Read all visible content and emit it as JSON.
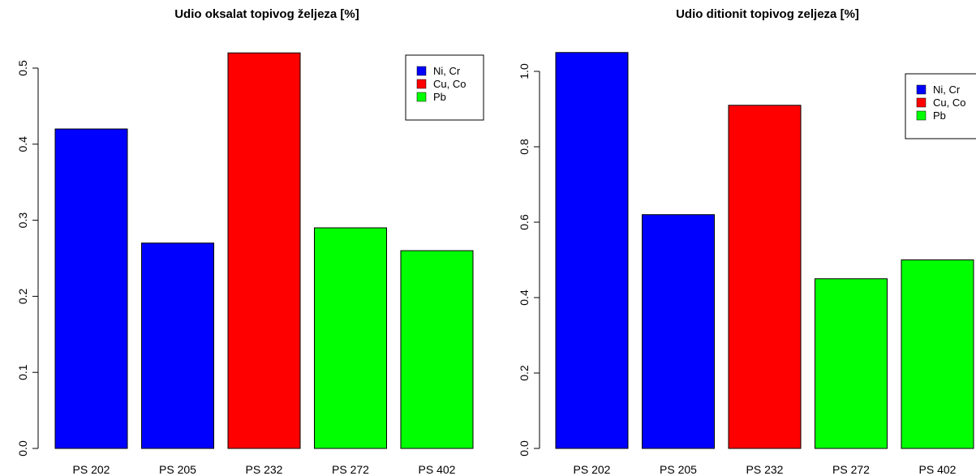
{
  "chart_data": [
    {
      "type": "bar",
      "title": "Udio oksalat topivog željeza [%]",
      "xlabel": "",
      "ylabel": "",
      "categories": [
        "PS 202",
        "PS 205",
        "PS 232",
        "PS 272",
        "PS 402"
      ],
      "values": [
        0.42,
        0.27,
        0.52,
        0.29,
        0.26
      ],
      "bar_groups": [
        "Ni, Cr",
        "Ni, Cr",
        "Cu, Co",
        "Pb",
        "Pb"
      ],
      "ylim": [
        0,
        0.5
      ],
      "yticks": [
        0.0,
        0.1,
        0.2,
        0.3,
        0.4,
        0.5
      ],
      "ytick_labels": [
        "0.0",
        "0.1",
        "0.2",
        "0.3",
        "0.4",
        "0.5"
      ],
      "grid": false,
      "legend_position": "top-right",
      "legend": [
        {
          "label": "Ni, Cr",
          "color": "#0000ff"
        },
        {
          "label": "Cu, Co",
          "color": "#ff0000"
        },
        {
          "label": "Pb",
          "color": "#00ff00"
        }
      ]
    },
    {
      "type": "bar",
      "title": "Udio ditionit topivog zeljeza [%]",
      "xlabel": "",
      "ylabel": "",
      "categories": [
        "PS 202",
        "PS 205",
        "PS 232",
        "PS 272",
        "PS 402"
      ],
      "values": [
        1.05,
        0.62,
        0.91,
        0.45,
        0.5
      ],
      "bar_groups": [
        "Ni, Cr",
        "Ni, Cr",
        "Cu, Co",
        "Pb",
        "Pb"
      ],
      "ylim": [
        0,
        1.0
      ],
      "yticks": [
        0.0,
        0.2,
        0.4,
        0.6,
        0.8,
        1.0
      ],
      "ytick_labels": [
        "0.0",
        "0.2",
        "0.4",
        "0.6",
        "0.8",
        "1.0"
      ],
      "grid": false,
      "legend_position": "top-right",
      "legend": [
        {
          "label": "Ni, Cr",
          "color": "#0000ff"
        },
        {
          "label": "Cu, Co",
          "color": "#ff0000"
        },
        {
          "label": "Pb",
          "color": "#00ff00"
        }
      ]
    }
  ]
}
